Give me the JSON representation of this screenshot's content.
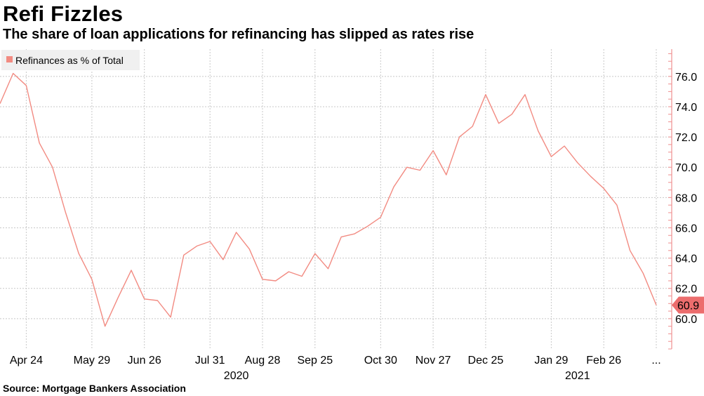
{
  "title": "Refi Fizzles",
  "subtitle": "The share of loan applications for refinancing has slipped as rates rise",
  "source": "Source: Mortgage Bankers Association",
  "colors": {
    "series": "#f28b82",
    "marker": "#ec6d6d",
    "grid": "#c8c8c8",
    "axis": "#ef8f8f",
    "legend_bg": "#f0f0f0"
  },
  "chart_data": {
    "type": "line",
    "y_ticks": [
      60.0,
      62.0,
      64.0,
      66.0,
      68.0,
      70.0,
      72.0,
      74.0,
      76.0
    ],
    "y_tick_labels": [
      "60.0",
      "62.0",
      "64.0",
      "66.0",
      "68.0",
      "70.0",
      "72.0",
      "74.0",
      "76.0"
    ],
    "ylim": [
      58.0,
      77.8
    ],
    "y_axis_side": "right",
    "x_tick_labels": [
      "Apr 24",
      "May 29",
      "Jun 26",
      "Jul 31",
      "Aug 28",
      "Sep 25",
      "Oct 30",
      "Nov 27",
      "Dec 25",
      "Jan 29",
      "Feb 26",
      "..."
    ],
    "x_tick_index": [
      2,
      7,
      11,
      16,
      20,
      24,
      29,
      33,
      37,
      42,
      46,
      50
    ],
    "year_labels": [
      {
        "label": "2020",
        "at_index": 18
      },
      {
        "label": "2021",
        "at_index": 44
      }
    ],
    "grid": true,
    "legend": {
      "entries": [
        "Refinances as % of Total"
      ],
      "placement": "top-left"
    },
    "series": [
      {
        "name": "Refinances as % of Total",
        "values": [
          74.2,
          76.2,
          75.4,
          71.6,
          70.0,
          67.0,
          64.3,
          62.6,
          59.5,
          61.4,
          63.2,
          61.3,
          61.2,
          60.1,
          64.2,
          64.8,
          65.1,
          63.9,
          65.7,
          64.6,
          62.6,
          62.5,
          63.1,
          62.8,
          64.3,
          63.3,
          65.4,
          65.6,
          66.1,
          66.7,
          68.7,
          70.0,
          69.8,
          71.1,
          69.5,
          72.0,
          72.7,
          74.8,
          72.9,
          73.5,
          74.8,
          72.4,
          70.7,
          71.4,
          70.3,
          69.4,
          68.6,
          67.5,
          64.5,
          63.0,
          60.9
        ]
      }
    ],
    "last_value_label": "60.9"
  }
}
